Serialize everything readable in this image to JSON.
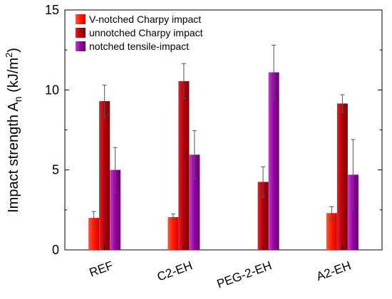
{
  "chart_data": {
    "type": "bar",
    "title": "",
    "xlabel": "",
    "ylabel": "Impact strength A",
    "ylabel_subscript": "n",
    "ylabel_units_prefix": " (kJ/m",
    "ylabel_units_sup": "2",
    "ylabel_units_suffix": ")",
    "ylim": [
      0,
      15
    ],
    "yticks": [
      0,
      5,
      10,
      15
    ],
    "categories": [
      "REF",
      "C2-EH",
      "PEG-2-EH",
      "A2-EH"
    ],
    "legend_position": "top-left",
    "grid": false,
    "series": [
      {
        "name": "V-notched Charpy impact",
        "color": "#ff1a00",
        "values": [
          2.0,
          2.05,
          null,
          2.3
        ],
        "errors": [
          0.4,
          0.2,
          null,
          0.4
        ]
      },
      {
        "name": "unnotched Charpy impact",
        "color": "#c8000a",
        "values": [
          9.3,
          10.55,
          4.25,
          9.15
        ],
        "errors": [
          1.0,
          1.1,
          0.95,
          0.55
        ]
      },
      {
        "name": "notched tensile-impact",
        "color": "#9400a0",
        "values": [
          5.0,
          5.95,
          11.1,
          4.7
        ],
        "errors": [
          1.4,
          1.5,
          1.7,
          2.2
        ]
      }
    ]
  }
}
